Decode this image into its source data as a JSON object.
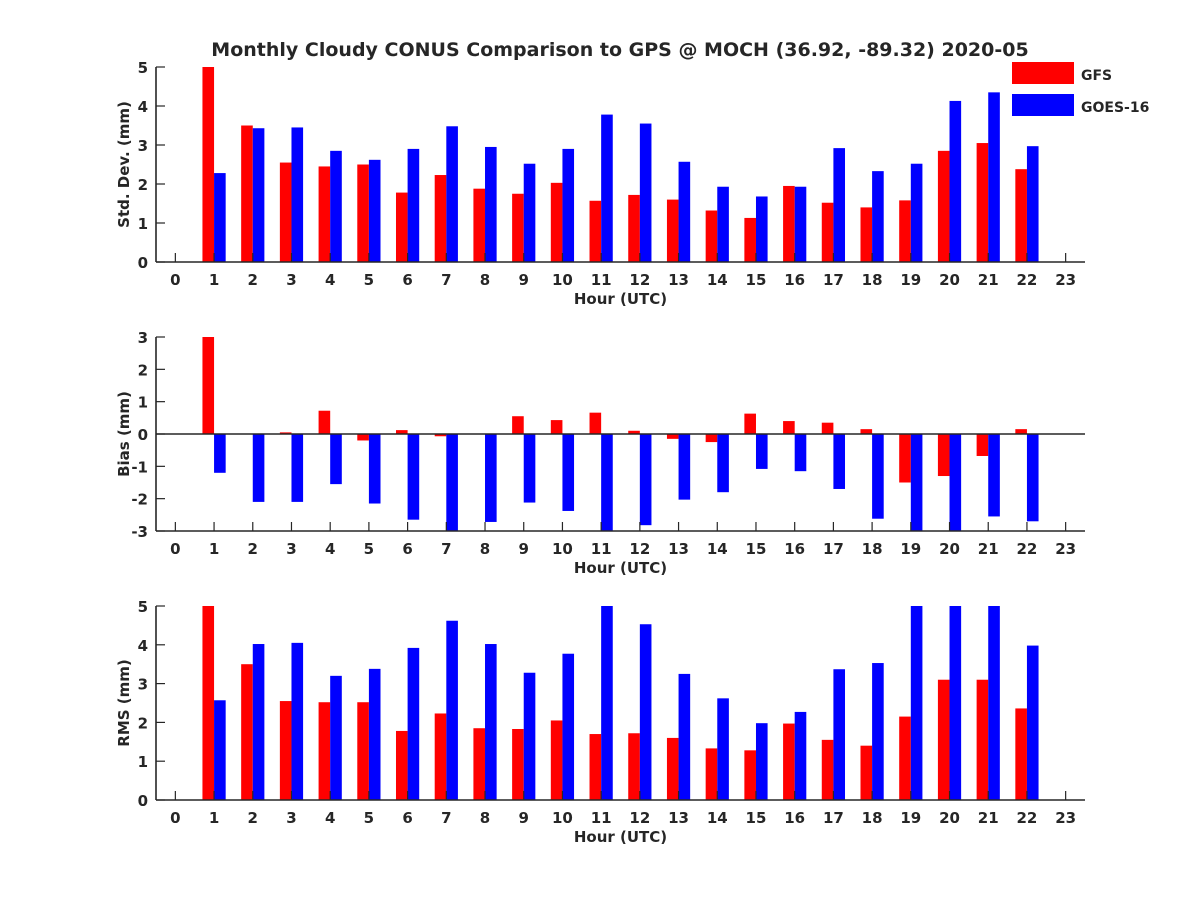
{
  "title": "Monthly Cloudy CONUS Comparison to GPS @ MOCH (36.92, -89.32) 2020-05",
  "colors": {
    "gfs": "#ff0000",
    "goes": "#0000ff",
    "axis": "#262626"
  },
  "legend": {
    "gfs_label": "GFS",
    "goes_label": "GOES-16",
    "placement": "top-right"
  },
  "chart_data": [
    {
      "type": "bar",
      "id": "std",
      "ylabel": "Std. Dev. (mm)",
      "xlabel": "Hour (UTC)",
      "ylim": [
        0,
        5
      ],
      "xlim": [
        -0.5,
        23.5
      ],
      "yticks": [
        0,
        1,
        2,
        3,
        4,
        5
      ],
      "xticks": [
        0,
        1,
        2,
        3,
        4,
        5,
        6,
        7,
        8,
        9,
        10,
        11,
        12,
        13,
        14,
        15,
        16,
        17,
        18,
        19,
        20,
        21,
        22,
        23
      ],
      "series": [
        {
          "name": "GFS",
          "x": [
            1,
            2,
            3,
            4,
            5,
            6,
            7,
            8,
            9,
            10,
            11,
            12,
            13,
            14,
            15,
            16,
            17,
            18,
            19,
            20,
            21,
            22
          ],
          "values": [
            5.0,
            3.5,
            2.55,
            2.45,
            2.5,
            1.78,
            2.23,
            1.88,
            1.75,
            2.03,
            1.57,
            1.72,
            1.6,
            1.32,
            1.13,
            1.95,
            1.52,
            1.4,
            1.58,
            2.85,
            3.05,
            2.38
          ]
        },
        {
          "name": "GOES-16",
          "x": [
            1,
            2,
            3,
            4,
            5,
            6,
            7,
            8,
            9,
            10,
            11,
            12,
            13,
            14,
            15,
            16,
            17,
            18,
            19,
            20,
            21,
            22
          ],
          "values": [
            2.28,
            3.43,
            3.45,
            2.85,
            2.62,
            2.9,
            3.48,
            2.95,
            2.52,
            2.9,
            3.78,
            3.55,
            2.57,
            1.93,
            1.68,
            1.93,
            2.92,
            2.33,
            2.52,
            4.13,
            4.35,
            2.97
          ]
        }
      ]
    },
    {
      "type": "bar",
      "id": "bias",
      "ylabel": "Bias (mm)",
      "xlabel": "Hour (UTC)",
      "ylim": [
        -3,
        3
      ],
      "xlim": [
        -0.5,
        23.5
      ],
      "yticks": [
        -3,
        -2,
        -1,
        0,
        1,
        2,
        3
      ],
      "xticks": [
        0,
        1,
        2,
        3,
        4,
        5,
        6,
        7,
        8,
        9,
        10,
        11,
        12,
        13,
        14,
        15,
        16,
        17,
        18,
        19,
        20,
        21,
        22,
        23
      ],
      "zero_line": true,
      "series": [
        {
          "name": "GFS",
          "x": [
            1,
            2,
            3,
            4,
            5,
            6,
            7,
            8,
            9,
            10,
            11,
            12,
            13,
            14,
            15,
            16,
            17,
            18,
            19,
            20,
            21,
            22
          ],
          "values": [
            3.0,
            0.0,
            0.05,
            0.72,
            -0.2,
            0.12,
            -0.07,
            0.0,
            0.55,
            0.43,
            0.66,
            0.1,
            -0.15,
            -0.25,
            0.63,
            0.4,
            0.35,
            0.15,
            -1.5,
            -1.3,
            -0.68,
            0.15
          ]
        },
        {
          "name": "GOES-16",
          "x": [
            1,
            2,
            3,
            4,
            5,
            6,
            7,
            8,
            9,
            10,
            11,
            12,
            13,
            14,
            15,
            16,
            17,
            18,
            19,
            20,
            21,
            22
          ],
          "values": [
            -1.2,
            -2.1,
            -2.1,
            -1.55,
            -2.15,
            -2.65,
            -3.0,
            -2.72,
            -2.12,
            -2.38,
            -3.0,
            -2.82,
            -2.03,
            -1.8,
            -1.08,
            -1.15,
            -1.7,
            -2.62,
            -3.0,
            -3.0,
            -2.55,
            -2.7
          ]
        }
      ]
    },
    {
      "type": "bar",
      "id": "rms",
      "ylabel": "RMS (mm)",
      "xlabel": "Hour (UTC)",
      "ylim": [
        0,
        5
      ],
      "xlim": [
        -0.5,
        23.5
      ],
      "yticks": [
        0,
        1,
        2,
        3,
        4,
        5
      ],
      "xticks": [
        0,
        1,
        2,
        3,
        4,
        5,
        6,
        7,
        8,
        9,
        10,
        11,
        12,
        13,
        14,
        15,
        16,
        17,
        18,
        19,
        20,
        21,
        22,
        23
      ],
      "series": [
        {
          "name": "GFS",
          "x": [
            1,
            2,
            3,
            4,
            5,
            6,
            7,
            8,
            9,
            10,
            11,
            12,
            13,
            14,
            15,
            16,
            17,
            18,
            19,
            20,
            21,
            22
          ],
          "values": [
            5.0,
            3.5,
            2.55,
            2.52,
            2.52,
            1.78,
            2.23,
            1.85,
            1.83,
            2.05,
            1.7,
            1.72,
            1.6,
            1.33,
            1.28,
            1.97,
            1.55,
            1.4,
            2.15,
            3.1,
            3.1,
            2.36
          ]
        },
        {
          "name": "GOES-16",
          "x": [
            1,
            2,
            3,
            4,
            5,
            6,
            7,
            8,
            9,
            10,
            11,
            12,
            13,
            14,
            15,
            16,
            17,
            18,
            19,
            20,
            21,
            22
          ],
          "values": [
            2.57,
            4.02,
            4.05,
            3.2,
            3.38,
            3.92,
            4.62,
            4.02,
            3.28,
            3.77,
            5.0,
            4.53,
            3.25,
            2.62,
            1.98,
            2.27,
            3.37,
            3.53,
            5.0,
            5.0,
            5.0,
            3.98
          ]
        }
      ]
    }
  ]
}
